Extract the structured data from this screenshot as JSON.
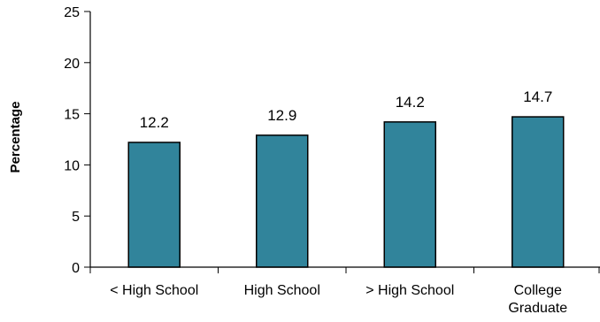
{
  "chart_data": {
    "type": "bar",
    "categories": [
      [
        "< High School"
      ],
      [
        "High School"
      ],
      [
        "> High School"
      ],
      [
        "College",
        "Graduate"
      ]
    ],
    "values": [
      12.2,
      12.9,
      14.2,
      14.7
    ],
    "data_labels": [
      "12.2",
      "12.9",
      "14.2",
      "14.7"
    ],
    "title": "",
    "xlabel": "",
    "ylabel": "Percentage",
    "ylim": [
      0,
      25
    ],
    "yticks": [
      0,
      5,
      10,
      15,
      20,
      25
    ],
    "grid": false,
    "legend": "none",
    "colors": {
      "bar_fill": "#31849B",
      "bar_stroke": "#000000",
      "axis": "#000000"
    }
  }
}
